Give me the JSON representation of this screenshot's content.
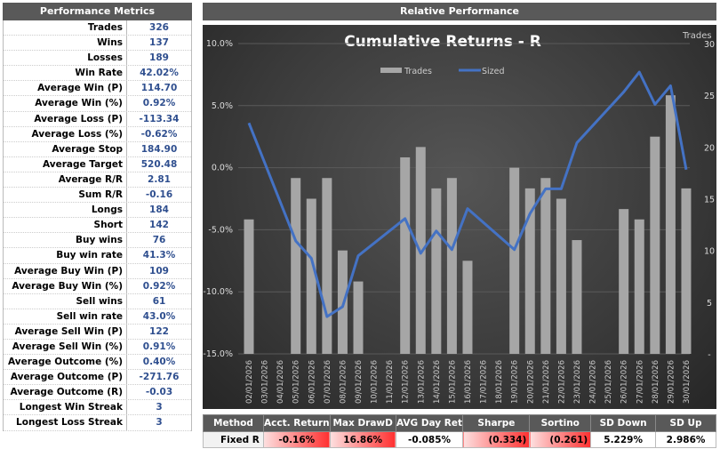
{
  "metrics": {
    "title": "Performance Metrics",
    "rows": [
      [
        "Trades",
        "326"
      ],
      [
        "Wins",
        "137"
      ],
      [
        "Losses",
        "189"
      ],
      [
        "Win Rate",
        "42.02%"
      ],
      [
        "Average Win (P)",
        "114.70"
      ],
      [
        "Average Win (%)",
        "0.92%"
      ],
      [
        "Average Loss (P)",
        "-113.34"
      ],
      [
        "Average Loss (%)",
        "-0.62%"
      ],
      [
        "Average Stop",
        "184.90"
      ],
      [
        "Average Target",
        "520.48"
      ],
      [
        "Average R/R",
        "2.81"
      ],
      [
        "Sum R/R",
        "-0.16"
      ],
      [
        "Longs",
        "184"
      ],
      [
        "Short",
        "142"
      ],
      [
        "Buy wins",
        "76"
      ],
      [
        "Buy win rate",
        "41.3%"
      ],
      [
        "Average Buy Win (P)",
        "109"
      ],
      [
        "Average Buy Win (%)",
        "0.92%"
      ],
      [
        "Sell wins",
        "61"
      ],
      [
        "Sell win rate",
        "43.0%"
      ],
      [
        "Average Sell Win (P)",
        "122"
      ],
      [
        "Average Sell Win (%)",
        "0.91%"
      ],
      [
        "Average Outcome (%)",
        "0.40%"
      ],
      [
        "Average Outcome (P)",
        "-271.76"
      ],
      [
        "Average Outcome (R)",
        "-0.03"
      ],
      [
        "Longest Win Streak",
        "3"
      ],
      [
        "Longest Loss Streak",
        "3"
      ]
    ]
  },
  "panel_title": "Relative Performance",
  "chart_data": {
    "type": "bar+line",
    "title": "Cumulative Returns - R",
    "right_axis_label": "Trades",
    "categories": [
      "02/01/2026",
      "03/01/2026",
      "04/01/2026",
      "05/01/2026",
      "06/01/2026",
      "07/01/2026",
      "08/01/2026",
      "09/01/2026",
      "10/01/2026",
      "11/01/2026",
      "12/01/2026",
      "13/01/2026",
      "14/01/2026",
      "15/01/2026",
      "16/01/2026",
      "17/01/2026",
      "18/01/2026",
      "19/01/2026",
      "20/01/2026",
      "21/01/2026",
      "22/01/2026",
      "23/01/2026",
      "24/01/2026",
      "25/01/2026",
      "26/01/2026",
      "27/01/2026",
      "28/01/2026",
      "29/01/2026",
      "30/01/2026"
    ],
    "series": [
      {
        "name": "Trades",
        "type": "bar",
        "axis": "right",
        "color": "#a6a6a6",
        "values": [
          13,
          0,
          0,
          17,
          15,
          17,
          10,
          7,
          0,
          0,
          19,
          20,
          16,
          17,
          9,
          0,
          0,
          18,
          16,
          17,
          15,
          11,
          0,
          0,
          14,
          13,
          21,
          25,
          16
        ]
      },
      {
        "name": "Sized",
        "type": "line",
        "axis": "left",
        "color": "#4472c4",
        "values": [
          3.6,
          null,
          null,
          -5.9,
          -7.3,
          -12.0,
          -11.2,
          -7.1,
          null,
          null,
          -4.1,
          -6.9,
          -5.1,
          -6.6,
          -3.3,
          null,
          null,
          -6.6,
          -3.7,
          -1.7,
          -1.7,
          2.0,
          null,
          null,
          6.1,
          7.7,
          5.1,
          6.6,
          -0.16
        ]
      }
    ],
    "left_axis": {
      "range": [
        -15,
        10
      ],
      "ticks": [
        "10.0%",
        "5.0%",
        "0.0%",
        "-5.0%",
        "-10.0%",
        "-15.0%"
      ]
    },
    "right_axis": {
      "range": [
        0,
        30
      ],
      "ticks": [
        "30",
        "25",
        "20",
        "15",
        "10",
        "5",
        "-"
      ]
    },
    "grid": true,
    "legend": "top"
  },
  "summary": {
    "headers": [
      "Method",
      "Acct. Return",
      "Max DrawD",
      "AVG Day Ret",
      "Sharpe",
      "Sortino",
      "SD Down",
      "SD Up"
    ],
    "row": [
      "Fixed R",
      "-0.16%",
      "16.86%",
      "-0.085%",
      "(0.334)",
      "(0.261)",
      "5.229%",
      "2.986%"
    ]
  }
}
